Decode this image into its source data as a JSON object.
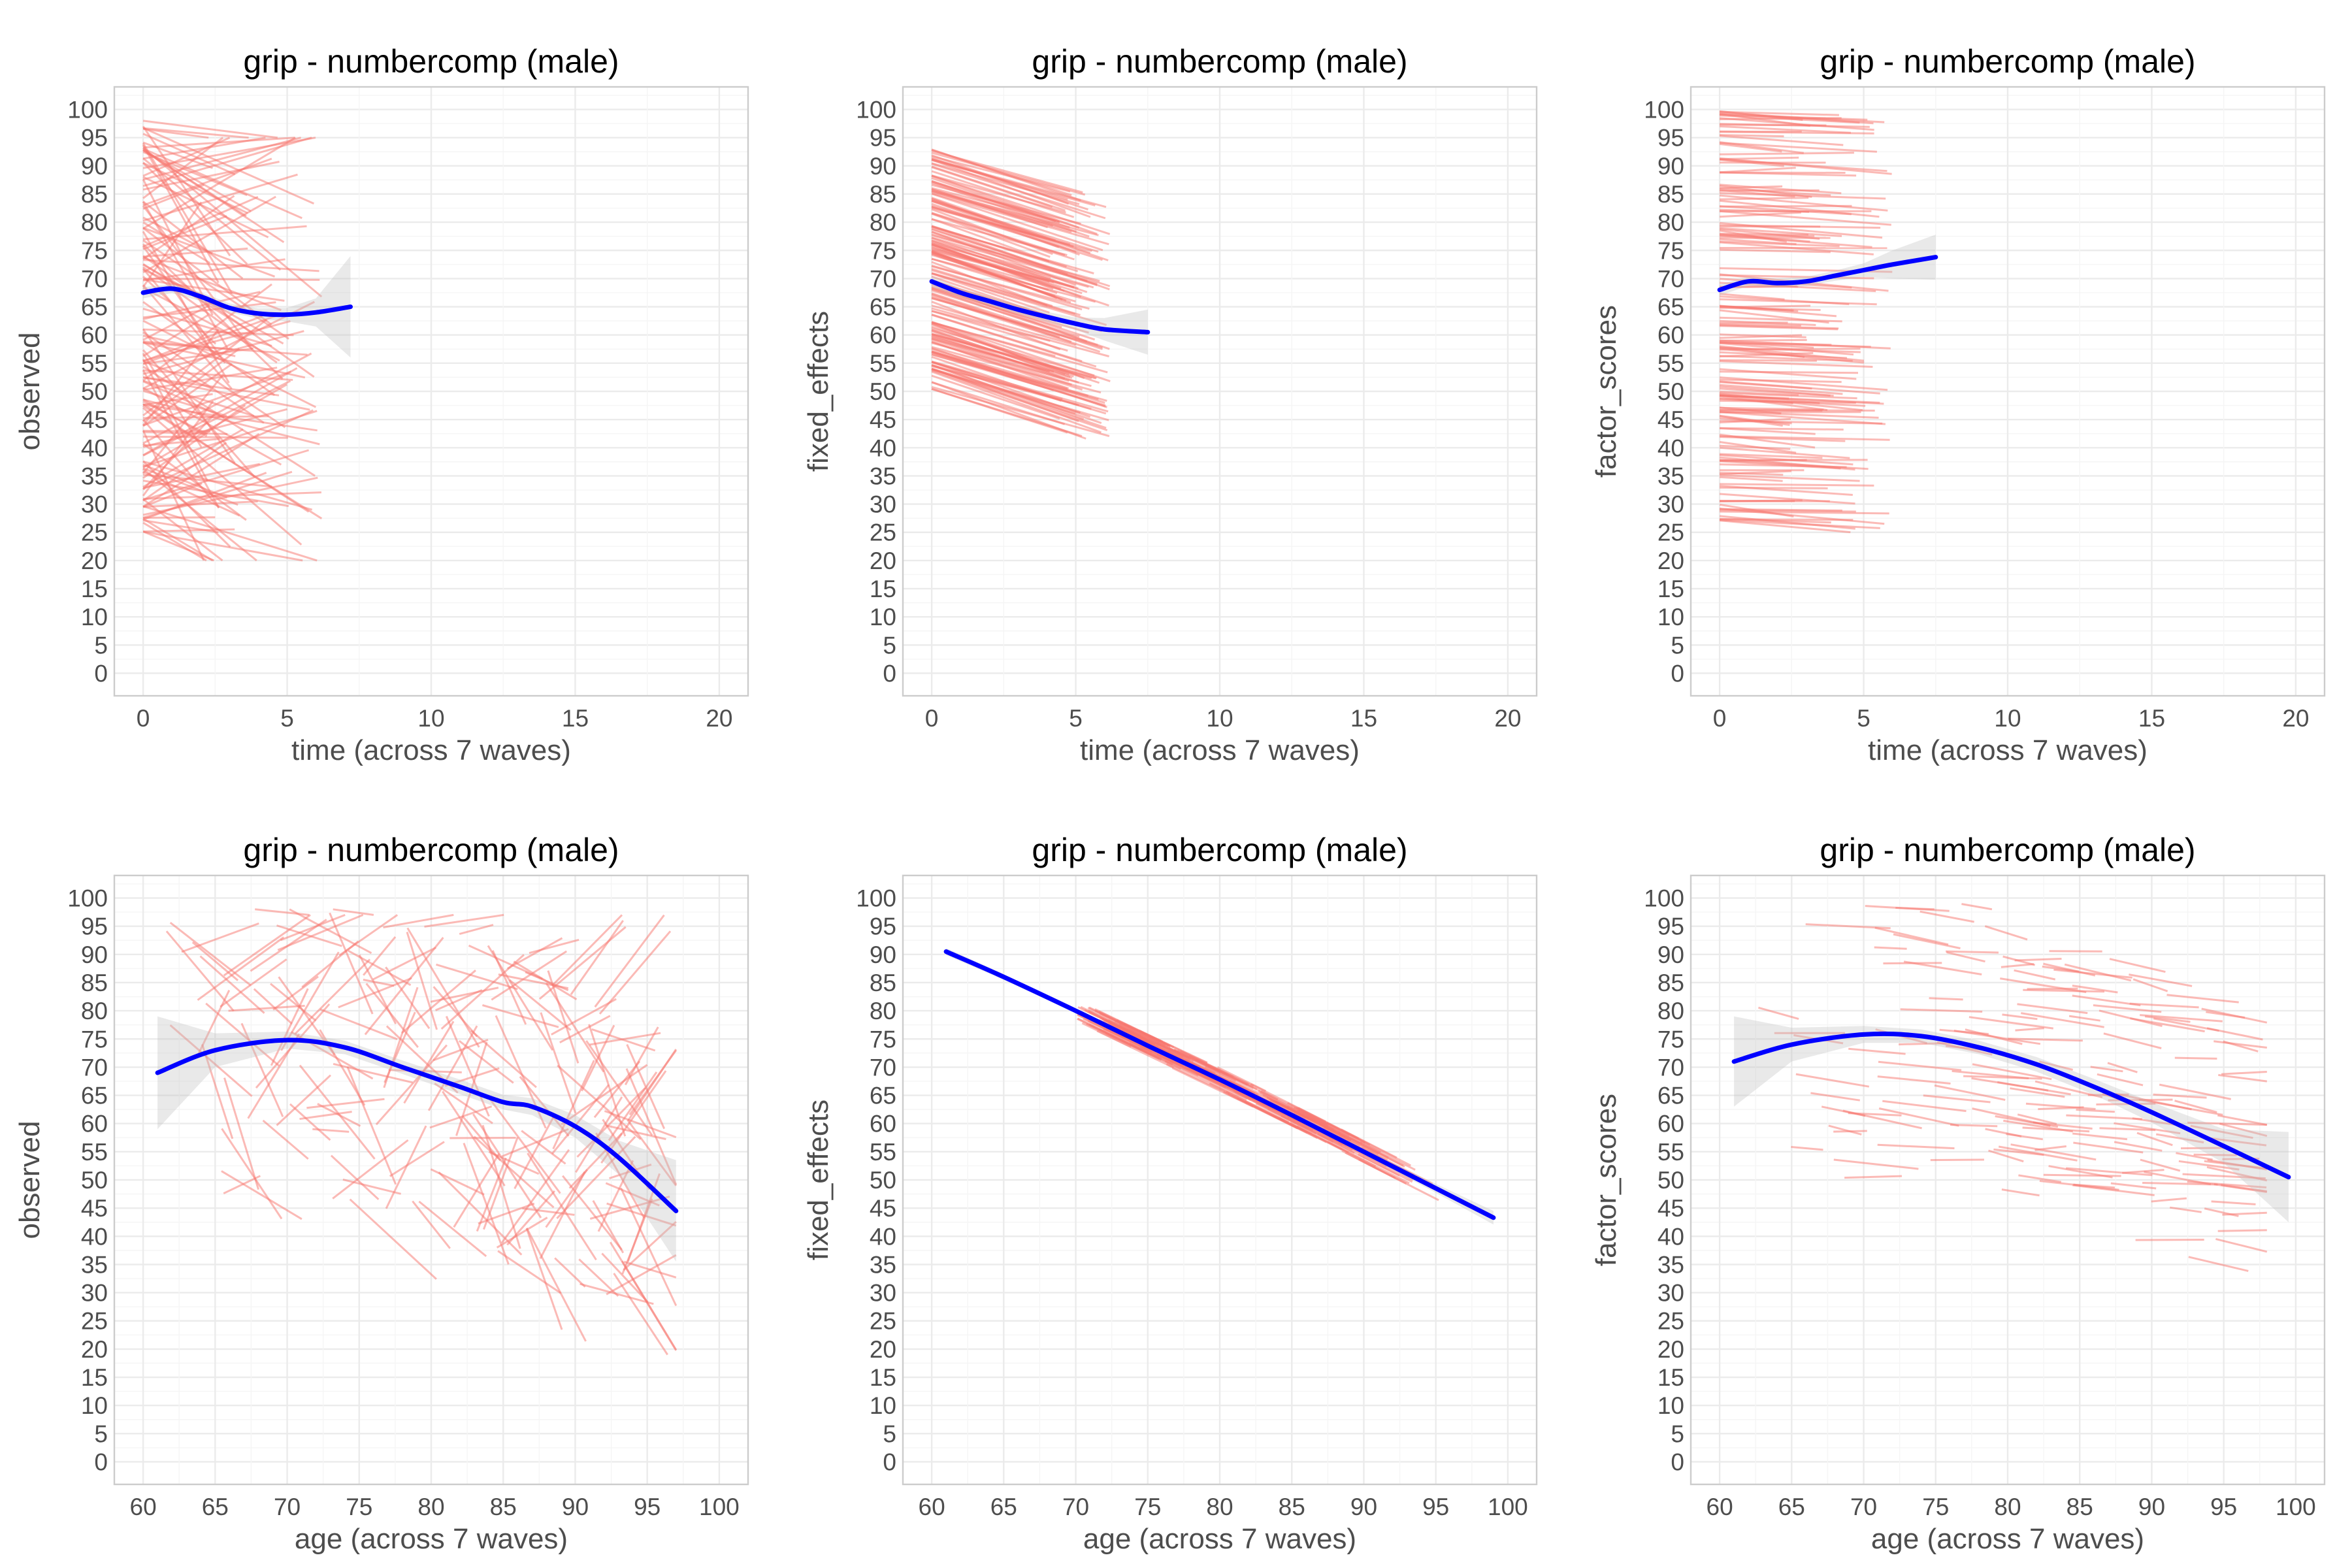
{
  "figure": {
    "panels": [
      {
        "title": "grip - numbercomp (male)",
        "xlabel": "time (across 7 waves)",
        "ylabel": "observed",
        "xticks": [
          "0",
          "5",
          "10",
          "15",
          "20"
        ],
        "yticks": [
          "0",
          "5",
          "10",
          "15",
          "20",
          "25",
          "30",
          "35",
          "40",
          "45",
          "50",
          "55",
          "60",
          "65",
          "70",
          "75",
          "80",
          "85",
          "90",
          "95",
          "100"
        ]
      },
      {
        "title": "grip - numbercomp (male)",
        "xlabel": "time (across 7 waves)",
        "ylabel": "fixed_effects",
        "xticks": [
          "0",
          "5",
          "10",
          "15",
          "20"
        ],
        "yticks": [
          "0",
          "5",
          "10",
          "15",
          "20",
          "25",
          "30",
          "35",
          "40",
          "45",
          "50",
          "55",
          "60",
          "65",
          "70",
          "75",
          "80",
          "85",
          "90",
          "95",
          "100"
        ]
      },
      {
        "title": "grip - numbercomp (male)",
        "xlabel": "time (across 7 waves)",
        "ylabel": "factor_scores",
        "xticks": [
          "0",
          "5",
          "10",
          "15",
          "20"
        ],
        "yticks": [
          "0",
          "5",
          "10",
          "15",
          "20",
          "25",
          "30",
          "35",
          "40",
          "45",
          "50",
          "55",
          "60",
          "65",
          "70",
          "75",
          "80",
          "85",
          "90",
          "95",
          "100"
        ]
      },
      {
        "title": "grip - numbercomp (male)",
        "xlabel": "age (across 7 waves)",
        "ylabel": "observed",
        "xticks": [
          "60",
          "65",
          "70",
          "75",
          "80",
          "85",
          "90",
          "95",
          "100"
        ],
        "yticks": [
          "0",
          "5",
          "10",
          "15",
          "20",
          "25",
          "30",
          "35",
          "40",
          "45",
          "50",
          "55",
          "60",
          "65",
          "70",
          "75",
          "80",
          "85",
          "90",
          "95",
          "100"
        ]
      },
      {
        "title": "grip - numbercomp (male)",
        "xlabel": "age (across 7 waves)",
        "ylabel": "fixed_effects",
        "xticks": [
          "60",
          "65",
          "70",
          "75",
          "80",
          "85",
          "90",
          "95",
          "100"
        ],
        "yticks": [
          "0",
          "5",
          "10",
          "15",
          "20",
          "25",
          "30",
          "35",
          "40",
          "45",
          "50",
          "55",
          "60",
          "65",
          "70",
          "75",
          "80",
          "85",
          "90",
          "95",
          "100"
        ]
      },
      {
        "title": "grip - numbercomp (male)",
        "xlabel": "age (across 7 waves)",
        "ylabel": "factor_scores",
        "xticks": [
          "60",
          "65",
          "70",
          "75",
          "80",
          "85",
          "90",
          "95",
          "100"
        ],
        "yticks": [
          "0",
          "5",
          "10",
          "15",
          "20",
          "25",
          "30",
          "35",
          "40",
          "45",
          "50",
          "55",
          "60",
          "65",
          "70",
          "75",
          "80",
          "85",
          "90",
          "95",
          "100"
        ]
      }
    ]
  },
  "chart_data": [
    {
      "type": "line",
      "title": "grip - numbercomp (male)",
      "xlabel": "time (across 7 waves)",
      "ylabel": "observed",
      "xlim": [
        -1,
        21
      ],
      "ylim": [
        -4,
        104
      ],
      "grid": true,
      "colors": {
        "trajectories": "#f8766d",
        "smooth": "#0000ff",
        "ribbon": "#bfbfbf"
      },
      "trajectories": {
        "count": 160,
        "x_start": 0,
        "x_end_range": [
          2,
          6.2
        ],
        "y_start_range": [
          25,
          98
        ],
        "y_end_range": [
          20,
          95
        ],
        "note_marks": "individual subject lines"
      },
      "smooth": {
        "x": [
          0,
          1,
          2,
          3,
          4,
          5,
          6,
          7.2
        ],
        "y": [
          67.5,
          68.2,
          66.8,
          64.8,
          63.8,
          63.6,
          64.0,
          65.0
        ]
      },
      "ribbon_halfwidth": [
        1.0,
        0.8,
        0.8,
        0.8,
        0.9,
        1.2,
        2.5,
        9.0
      ]
    },
    {
      "type": "line",
      "title": "grip - numbercomp (male)",
      "xlabel": "time (across 7 waves)",
      "ylabel": "fixed_effects",
      "xlim": [
        -1,
        21
      ],
      "ylim": [
        -4,
        104
      ],
      "grid": true,
      "colors": {
        "trajectories": "#f8766d",
        "smooth": "#0000ff",
        "ribbon": "#bfbfbf"
      },
      "trajectories": {
        "count": 170,
        "x_start": 0,
        "x_end_range": [
          4,
          6.2
        ],
        "y_start_range": [
          50,
          93
        ],
        "slope_per_unit": -1.6
      },
      "smooth": {
        "x": [
          0,
          1,
          2,
          3,
          4,
          5,
          6,
          7.5
        ],
        "y": [
          69.5,
          67.5,
          66.0,
          64.5,
          63.2,
          62.0,
          61.0,
          60.5
        ]
      },
      "ribbon_halfwidth": [
        1.0,
        0.8,
        0.8,
        0.8,
        0.9,
        1.1,
        2.0,
        4.0
      ]
    },
    {
      "type": "line",
      "title": "grip - numbercomp (male)",
      "xlabel": "time (across 7 waves)",
      "ylabel": "factor_scores",
      "xlim": [
        -1,
        21
      ],
      "ylim": [
        -4,
        104
      ],
      "grid": true,
      "colors": {
        "trajectories": "#f8766d",
        "smooth": "#0000ff",
        "ribbon": "#bfbfbf"
      },
      "trajectories": {
        "count": 170,
        "x_start": 0,
        "x_end_range": [
          2,
          6
        ],
        "y_start_range": [
          26,
          100
        ],
        "slope_per_unit": -0.25
      },
      "smooth": {
        "x": [
          0,
          1,
          2,
          3,
          4,
          5,
          6,
          7.5
        ],
        "y": [
          68.0,
          69.5,
          69.2,
          69.5,
          70.5,
          71.5,
          72.5,
          73.8
        ]
      },
      "ribbon_halfwidth": [
        1.0,
        0.8,
        0.8,
        0.8,
        0.9,
        1.2,
        2.5,
        4.0
      ]
    },
    {
      "type": "line",
      "title": "grip - numbercomp (male)",
      "xlabel": "age (across 7 waves)",
      "ylabel": "observed",
      "xlim": [
        58,
        102
      ],
      "ylim": [
        -4,
        104
      ],
      "grid": true,
      "colors": {
        "trajectories": "#f8766d",
        "smooth": "#0000ff",
        "ribbon": "#bfbfbf"
      },
      "trajectories": {
        "count": 190,
        "x_start_range": [
          61,
          94
        ],
        "duration_range": [
          2,
          6
        ],
        "y_start_range": [
          20,
          98
        ]
      },
      "smooth": {
        "x": [
          61,
          65,
          70,
          74,
          78,
          82,
          85,
          87,
          90,
          93,
          97
        ],
        "y": [
          69.0,
          73.0,
          74.8,
          73.5,
          70.0,
          66.5,
          63.8,
          63.0,
          59.5,
          54.0,
          44.5
        ]
      },
      "ribbon_halfwidth": [
        10.0,
        3.0,
        1.5,
        1.2,
        1.2,
        1.3,
        1.3,
        1.5,
        2.0,
        3.0,
        9.0
      ]
    },
    {
      "type": "line",
      "title": "grip - numbercomp (male)",
      "xlabel": "age (across 7 waves)",
      "ylabel": "fixed_effects",
      "xlim": [
        58,
        102
      ],
      "ylim": [
        -4,
        104
      ],
      "grid": true,
      "colors": {
        "trajectories": "#f8766d",
        "smooth": "#0000ff",
        "ribbon": "#bfbfbf"
      },
      "trajectories": {
        "count": 170,
        "x_start_range": [
          70,
          90
        ],
        "duration_range": [
          3,
          6
        ],
        "band_around_smooth": 2.0
      },
      "smooth": {
        "x": [
          61,
          65,
          70,
          75,
          80,
          85,
          90,
          95,
          99
        ],
        "y": [
          90.5,
          86.0,
          80.0,
          73.8,
          67.8,
          61.5,
          55.0,
          48.5,
          43.3
        ]
      },
      "ribbon_halfwidth": [
        0.6,
        0.5,
        0.4,
        0.4,
        0.4,
        0.4,
        0.5,
        0.8,
        1.2
      ]
    },
    {
      "type": "line",
      "title": "grip - numbercomp (male)",
      "xlabel": "age (across 7 waves)",
      "ylabel": "factor_scores",
      "xlim": [
        58,
        102
      ],
      "ylim": [
        -4,
        104
      ],
      "grid": true,
      "colors": {
        "trajectories": "#f8766d",
        "smooth": "#0000ff",
        "ribbon": "#bfbfbf"
      },
      "trajectories": {
        "count": 170,
        "x_start_range": [
          61,
          95
        ],
        "duration_range": [
          2,
          6
        ],
        "y_start_range": [
          25,
          99
        ],
        "slope_per_unit": -0.3
      },
      "smooth": {
        "x": [
          61,
          65,
          70,
          74,
          78,
          82,
          86,
          90,
          95,
          99.5
        ],
        "y": [
          71.0,
          74.0,
          75.8,
          75.5,
          73.5,
          70.5,
          66.5,
          62.0,
          56.0,
          50.5
        ]
      },
      "ribbon_halfwidth": [
        8.0,
        3.0,
        1.5,
        1.2,
        1.2,
        1.3,
        1.4,
        1.8,
        3.0,
        8.0
      ]
    }
  ]
}
